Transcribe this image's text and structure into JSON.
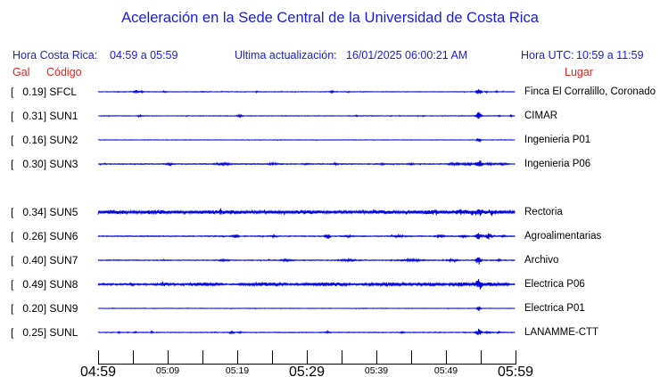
{
  "title": "Aceleración en la Sede Central de la Universidad de Costa Rica",
  "header": {
    "local_time_label": "Hora Costa Rica:",
    "local_time_value": "04:59 a 05:59",
    "update_label": "Ultima actualización:",
    "update_value": "16/01/2025 06:00:21 AM",
    "utc_label": "Hora UTC:",
    "utc_value": "10:59 a 11:59"
  },
  "columns": {
    "gal": "Gal",
    "code": "Código",
    "place": "Lugar"
  },
  "colors": {
    "blue_text": "#1a1ae1",
    "red_text": "#e8231e",
    "trace_blue": "#0000dd",
    "axis_black": "#000000"
  },
  "chart_data": {
    "type": "line",
    "title": "Aceleración en la Sede Central de la Universidad de Costa Rica",
    "xlabel": "Hora Costa Rica",
    "time_window_local": "04:59 a 05:59",
    "time_window_utc": "10:59 a 11:59",
    "date": "16/01/2025",
    "units": "Gal",
    "x_ticks": [
      {
        "t": "04:59",
        "lbl": "large"
      },
      {
        "t": "05:04",
        "lbl": "none"
      },
      {
        "t": "05:09",
        "lbl": "small"
      },
      {
        "t": "05:14",
        "lbl": "none"
      },
      {
        "t": "05:19",
        "lbl": "small"
      },
      {
        "t": "05:24",
        "lbl": "none"
      },
      {
        "t": "05:29",
        "lbl": "large"
      },
      {
        "t": "05:34",
        "lbl": "none"
      },
      {
        "t": "05:39",
        "lbl": "small"
      },
      {
        "t": "05:44",
        "lbl": "none"
      },
      {
        "t": "05:49",
        "lbl": "small"
      },
      {
        "t": "05:54",
        "lbl": "none"
      },
      {
        "t": "05:59",
        "lbl": "large"
      }
    ],
    "traces": [
      {
        "label": "[   0.19] SFCL",
        "gal_peak": 0.19,
        "code": "SFCL",
        "place": "Finca El Corralillo, Coronado",
        "row_gap_before": false,
        "noise_base": 0.35,
        "bursts": [
          [
            0.09,
            1.6,
            0.004
          ],
          [
            0.105,
            0.9,
            0.003
          ],
          [
            0.16,
            0.7,
            0.002
          ],
          [
            0.25,
            0.5,
            0.002
          ],
          [
            0.38,
            0.8,
            0.002
          ],
          [
            0.56,
            1.1,
            0.003
          ],
          [
            0.6,
            0.6,
            0.002
          ],
          [
            0.912,
            4.0,
            0.004
          ],
          [
            0.93,
            0.8,
            0.002
          ],
          [
            0.955,
            1.0,
            0.002
          ]
        ]
      },
      {
        "label": "[   0.31] SUN1",
        "gal_peak": 0.31,
        "code": "SUN1",
        "place": "CIMAR",
        "row_gap_before": false,
        "noise_base": 0.35,
        "bursts": [
          [
            0.1,
            1.1,
            0.003
          ],
          [
            0.34,
            1.6,
            0.004
          ],
          [
            0.62,
            0.7,
            0.002
          ],
          [
            0.78,
            0.5,
            0.002
          ],
          [
            0.912,
            5.0,
            0.004
          ],
          [
            0.96,
            0.7,
            0.002
          ],
          [
            0.99,
            0.8,
            0.002
          ]
        ]
      },
      {
        "label": "[   0.16] SUN2",
        "gal_peak": 0.16,
        "code": "SUN2",
        "place": "Ingenieria P01",
        "row_gap_before": false,
        "noise_base": 0.28,
        "bursts": [
          [
            0.912,
            2.6,
            0.003
          ]
        ]
      },
      {
        "label": "[   0.30] SUN3",
        "gal_peak": 0.3,
        "code": "SUN3",
        "place": "Ingenieria P06",
        "row_gap_before": false,
        "noise_base": 0.5,
        "bursts": [
          [
            0.17,
            1.4,
            0.004
          ],
          [
            0.3,
            1.3,
            0.012
          ],
          [
            0.42,
            1.0,
            0.008
          ],
          [
            0.5,
            0.9,
            0.004
          ],
          [
            0.57,
            1.0,
            0.004
          ],
          [
            0.68,
            0.7,
            0.003
          ],
          [
            0.75,
            0.9,
            0.004
          ],
          [
            0.86,
            1.2,
            0.012
          ],
          [
            0.89,
            1.4,
            0.006
          ],
          [
            0.912,
            5.0,
            0.005
          ],
          [
            0.94,
            1.0,
            0.01
          ],
          [
            0.97,
            0.9,
            0.006
          ]
        ]
      },
      {
        "label": "[   0.34] SUN5",
        "gal_peak": 0.34,
        "code": "SUN5",
        "place": "Rectoria",
        "row_gap_before": true,
        "noise_base": 1.5,
        "bursts": [
          [
            0.04,
            1.0,
            0.015
          ],
          [
            0.14,
            1.2,
            0.02
          ],
          [
            0.3,
            1.2,
            0.03
          ],
          [
            0.5,
            0.8,
            0.02
          ],
          [
            0.68,
            0.8,
            0.02
          ],
          [
            0.8,
            1.2,
            0.02
          ],
          [
            0.87,
            2.0,
            0.01
          ],
          [
            0.912,
            4.0,
            0.006
          ],
          [
            0.94,
            1.5,
            0.015
          ]
        ]
      },
      {
        "label": "[   0.26] SUN6",
        "gal_peak": 0.26,
        "code": "SUN6",
        "place": "Agroalimentarias",
        "row_gap_before": false,
        "noise_base": 0.5,
        "bursts": [
          [
            0.33,
            1.6,
            0.005
          ],
          [
            0.42,
            0.7,
            0.004
          ],
          [
            0.55,
            2.6,
            0.004
          ],
          [
            0.6,
            0.8,
            0.006
          ],
          [
            0.72,
            1.0,
            0.01
          ],
          [
            0.82,
            1.6,
            0.006
          ],
          [
            0.875,
            2.0,
            0.005
          ],
          [
            0.912,
            3.2,
            0.005
          ],
          [
            0.935,
            2.6,
            0.006
          ],
          [
            0.97,
            0.8,
            0.004
          ]
        ]
      },
      {
        "label": "[   0.40] SUN7",
        "gal_peak": 0.4,
        "code": "SUN7",
        "place": "Archivo",
        "row_gap_before": false,
        "noise_base": 0.45,
        "bursts": [
          [
            0.3,
            0.7,
            0.01
          ],
          [
            0.45,
            0.7,
            0.01
          ],
          [
            0.6,
            0.9,
            0.015
          ],
          [
            0.75,
            1.0,
            0.02
          ],
          [
            0.85,
            1.1,
            0.01
          ],
          [
            0.912,
            4.6,
            0.004
          ],
          [
            0.96,
            0.6,
            0.004
          ]
        ]
      },
      {
        "label": "[   0.49] SUN8",
        "gal_peak": 0.49,
        "code": "SUN8",
        "place": "Electrica P06",
        "row_gap_before": false,
        "noise_base": 0.85,
        "bursts": [
          [
            0.08,
            1.0,
            0.004
          ],
          [
            0.16,
            1.2,
            0.01
          ],
          [
            0.25,
            1.4,
            0.02
          ],
          [
            0.4,
            1.2,
            0.03
          ],
          [
            0.55,
            1.4,
            0.035
          ],
          [
            0.7,
            1.4,
            0.03
          ],
          [
            0.8,
            1.3,
            0.02
          ],
          [
            0.87,
            1.8,
            0.015
          ],
          [
            0.912,
            7.0,
            0.005
          ],
          [
            0.94,
            1.4,
            0.01
          ],
          [
            0.97,
            1.0,
            0.008
          ]
        ]
      },
      {
        "label": "[   0.20] SUN9",
        "gal_peak": 0.2,
        "code": "SUN9",
        "place": "Electrica P01",
        "row_gap_before": false,
        "noise_base": 0.28,
        "bursts": [
          [
            0.912,
            3.2,
            0.003
          ]
        ]
      },
      {
        "label": "[   0.25] SUNL",
        "gal_peak": 0.25,
        "code": "SUNL",
        "place": "LANAMME-CTT",
        "row_gap_before": false,
        "noise_base": 0.4,
        "bursts": [
          [
            0.05,
            0.8,
            0.002
          ],
          [
            0.09,
            0.7,
            0.002
          ],
          [
            0.13,
            0.9,
            0.002
          ],
          [
            0.32,
            1.3,
            0.004
          ],
          [
            0.34,
            0.8,
            0.003
          ],
          [
            0.55,
            1.0,
            0.003
          ],
          [
            0.6,
            0.6,
            0.002
          ],
          [
            0.73,
            0.7,
            0.003
          ],
          [
            0.82,
            0.6,
            0.002
          ],
          [
            0.912,
            4.2,
            0.004
          ],
          [
            0.935,
            0.9,
            0.006
          ],
          [
            0.96,
            0.8,
            0.004
          ]
        ]
      }
    ]
  }
}
